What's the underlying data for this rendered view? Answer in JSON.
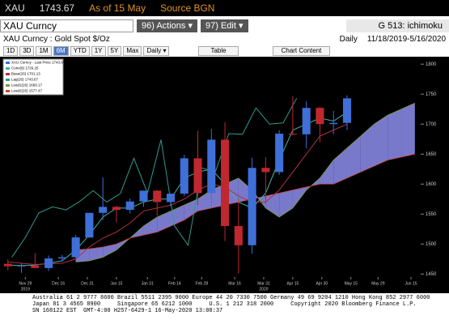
{
  "header": {
    "ticker": "XAU",
    "price": "1743.67",
    "as_of": "As of 15 May",
    "source": "Source BGN"
  },
  "toolbar": {
    "security": "XAU Curncy",
    "actions": "96) Actions ▾",
    "edit": "97) Edit ▾",
    "page": "G 513: ichimoku"
  },
  "subheader": {
    "name": "XAU Curncy : Gold Spot  $/Oz",
    "frequency": "Daily",
    "range": "11/18/2019-5/16/2020"
  },
  "buttons": [
    "1D",
    "3D",
    "1M",
    "6M",
    "YTD",
    "1Y",
    "5Y",
    "Max"
  ],
  "selected_button": "6M",
  "period": "Daily ▾",
  "table_button": "Table",
  "chart_content": "Chart Content",
  "chart_data": {
    "type": "ichimoku",
    "legend": [
      "XAU Curncy - Last Price 1743.67",
      "Conv(9) 1726.25",
      "Base(26) 1701.13",
      "Lag(26) 1743.67",
      "Lead1(26) 1669.17",
      "Lead2(26) 1577.47"
    ],
    "xlim": [
      0,
      215
    ],
    "xticks": [
      {
        "value": 11,
        "label": "Nov 29"
      },
      {
        "value": 28,
        "label": "Dec 16"
      },
      {
        "value": 43,
        "label": "Dec 31"
      },
      {
        "value": 58,
        "label": "Jan 15"
      },
      {
        "value": 74,
        "label": "Jan 31"
      },
      {
        "value": 88,
        "label": "Feb 14"
      },
      {
        "value": 102,
        "label": "Feb 28"
      },
      {
        "value": 119,
        "label": "Mar 16"
      },
      {
        "value": 134,
        "label": "Mar 31"
      },
      {
        "value": 149,
        "label": "Apr 15"
      },
      {
        "value": 164,
        "label": "Apr 30"
      },
      {
        "value": 179,
        "label": "May 15"
      },
      {
        "value": 193,
        "label": "May 29"
      },
      {
        "value": 210,
        "label": "Jun 15"
      }
    ],
    "years": [
      {
        "value": 11,
        "label": "2019"
      },
      {
        "value": 134,
        "label": "2020"
      }
    ],
    "ylim": [
      1445,
      1807
    ],
    "yticks": [
      1450,
      1500,
      1550,
      1600,
      1650,
      1700,
      1750,
      1800
    ],
    "candles": {
      "up_color": "#3f6fd8",
      "down_color": "#c0282f",
      "x": [
        2,
        9,
        16,
        23,
        30,
        37,
        44,
        51,
        58,
        65,
        72,
        79,
        86,
        93,
        100,
        107,
        114,
        121,
        128,
        135,
        142,
        149,
        156,
        163,
        170,
        177
      ],
      "open": [
        1467,
        1463,
        1464,
        1460,
        1476,
        1478,
        1511,
        1552,
        1562,
        1557,
        1571,
        1589,
        1570,
        1584,
        1643,
        1585,
        1674,
        1530,
        1498,
        1627,
        1620,
        1684,
        1683,
        1727,
        1700,
        1702
      ],
      "high": [
        1475,
        1468,
        1485,
        1481,
        1482,
        1515,
        1552,
        1611,
        1564,
        1576,
        1589,
        1590,
        1584,
        1649,
        1689,
        1692,
        1703,
        1575,
        1644,
        1645,
        1690,
        1747,
        1738,
        1729,
        1722,
        1748
      ],
      "low": [
        1456,
        1452,
        1460,
        1455,
        1471,
        1477,
        1510,
        1540,
        1536,
        1551,
        1562,
        1547,
        1563,
        1580,
        1565,
        1575,
        1505,
        1451,
        1484,
        1567,
        1615,
        1681,
        1660,
        1670,
        1683,
        1690
      ],
      "close": [
        1463,
        1464,
        1460,
        1476,
        1478,
        1511,
        1552,
        1562,
        1557,
        1571,
        1589,
        1570,
        1584,
        1643,
        1585,
        1674,
        1530,
        1498,
        1627,
        1620,
        1684,
        1683,
        1727,
        1700,
        1702,
        1743
      ]
    },
    "lines": [
      {
        "name": "Conv(9)",
        "color": "#3fb3ad",
        "x": [
          2,
          9,
          16,
          23,
          30,
          37,
          44,
          51,
          58,
          65,
          72,
          79,
          86,
          93,
          100,
          107,
          114,
          121,
          128,
          135,
          142,
          149,
          156,
          163,
          170,
          177
        ],
        "values": [
          1465,
          1464,
          1465,
          1468,
          1472,
          1490,
          1515,
          1545,
          1560,
          1560,
          1570,
          1575,
          1575,
          1610,
          1620,
          1625,
          1600,
          1570,
          1560,
          1585,
          1640,
          1690,
          1700,
          1710,
          1705,
          1720
        ]
      },
      {
        "name": "Base(26)",
        "color": "#b03040",
        "x": [
          2,
          9,
          16,
          23,
          30,
          37,
          44,
          51,
          58,
          65,
          72,
          79,
          86,
          93,
          100,
          107,
          114,
          121,
          128,
          135,
          142,
          149,
          156,
          163,
          170,
          177
        ],
        "values": [
          1470,
          1468,
          1466,
          1467,
          1468,
          1475,
          1495,
          1510,
          1520,
          1535,
          1555,
          1560,
          1565,
          1575,
          1590,
          1600,
          1595,
          1580,
          1570,
          1570,
          1590,
          1620,
          1650,
          1680,
          1690,
          1700
        ]
      },
      {
        "name": "Lag(26)",
        "color": "#2f9a8f",
        "x": [
          4,
          11,
          18,
          25,
          32,
          39,
          46,
          53,
          60,
          67,
          74,
          81,
          88,
          95,
          102,
          109,
          116,
          123,
          130,
          137,
          144,
          151
        ],
        "values": [
          1478,
          1511,
          1552,
          1562,
          1557,
          1571,
          1589,
          1570,
          1584,
          1643,
          1585,
          1674,
          1530,
          1498,
          1627,
          1620,
          1684,
          1683,
          1727,
          1700,
          1702,
          1743
        ]
      }
    ],
    "cloud": {
      "color": "#8e8ef0",
      "x": [
        37,
        44,
        51,
        58,
        65,
        72,
        79,
        86,
        93,
        100,
        107,
        114,
        121,
        128,
        135,
        142,
        149,
        156,
        163,
        170,
        177,
        184,
        191,
        198,
        205,
        212
      ],
      "lead1": [
        1470,
        1472,
        1478,
        1490,
        1510,
        1530,
        1545,
        1555,
        1565,
        1575,
        1590,
        1600,
        1610,
        1590,
        1560,
        1545,
        1560,
        1590,
        1610,
        1640,
        1660,
        1680,
        1700,
        1715,
        1725,
        1735
      ],
      "lead2": [
        1490,
        1492,
        1495,
        1500,
        1510,
        1515,
        1520,
        1530,
        1540,
        1555,
        1560,
        1565,
        1570,
        1575,
        1580,
        1585,
        1590,
        1595,
        1600,
        1600,
        1610,
        1620,
        1630,
        1640,
        1645,
        1650
      ]
    }
  },
  "footer": [
    "Australia 61 2 9777 8600 Brazil 5511 2395 9000 Europe 44 20 7330 7500 Germany 49 69 9204 1210 Hong Kong 852 2977 6000",
    "Japan 81 3 4565 8900     Singapore 65 6212 1000     U.S. 1 212 318 2000     Copyright 2020 Bloomberg Finance L.P.",
    "SN 168122 EST  GMT-4:00 H257-6429-1 16-May-2020 13:08:37"
  ]
}
